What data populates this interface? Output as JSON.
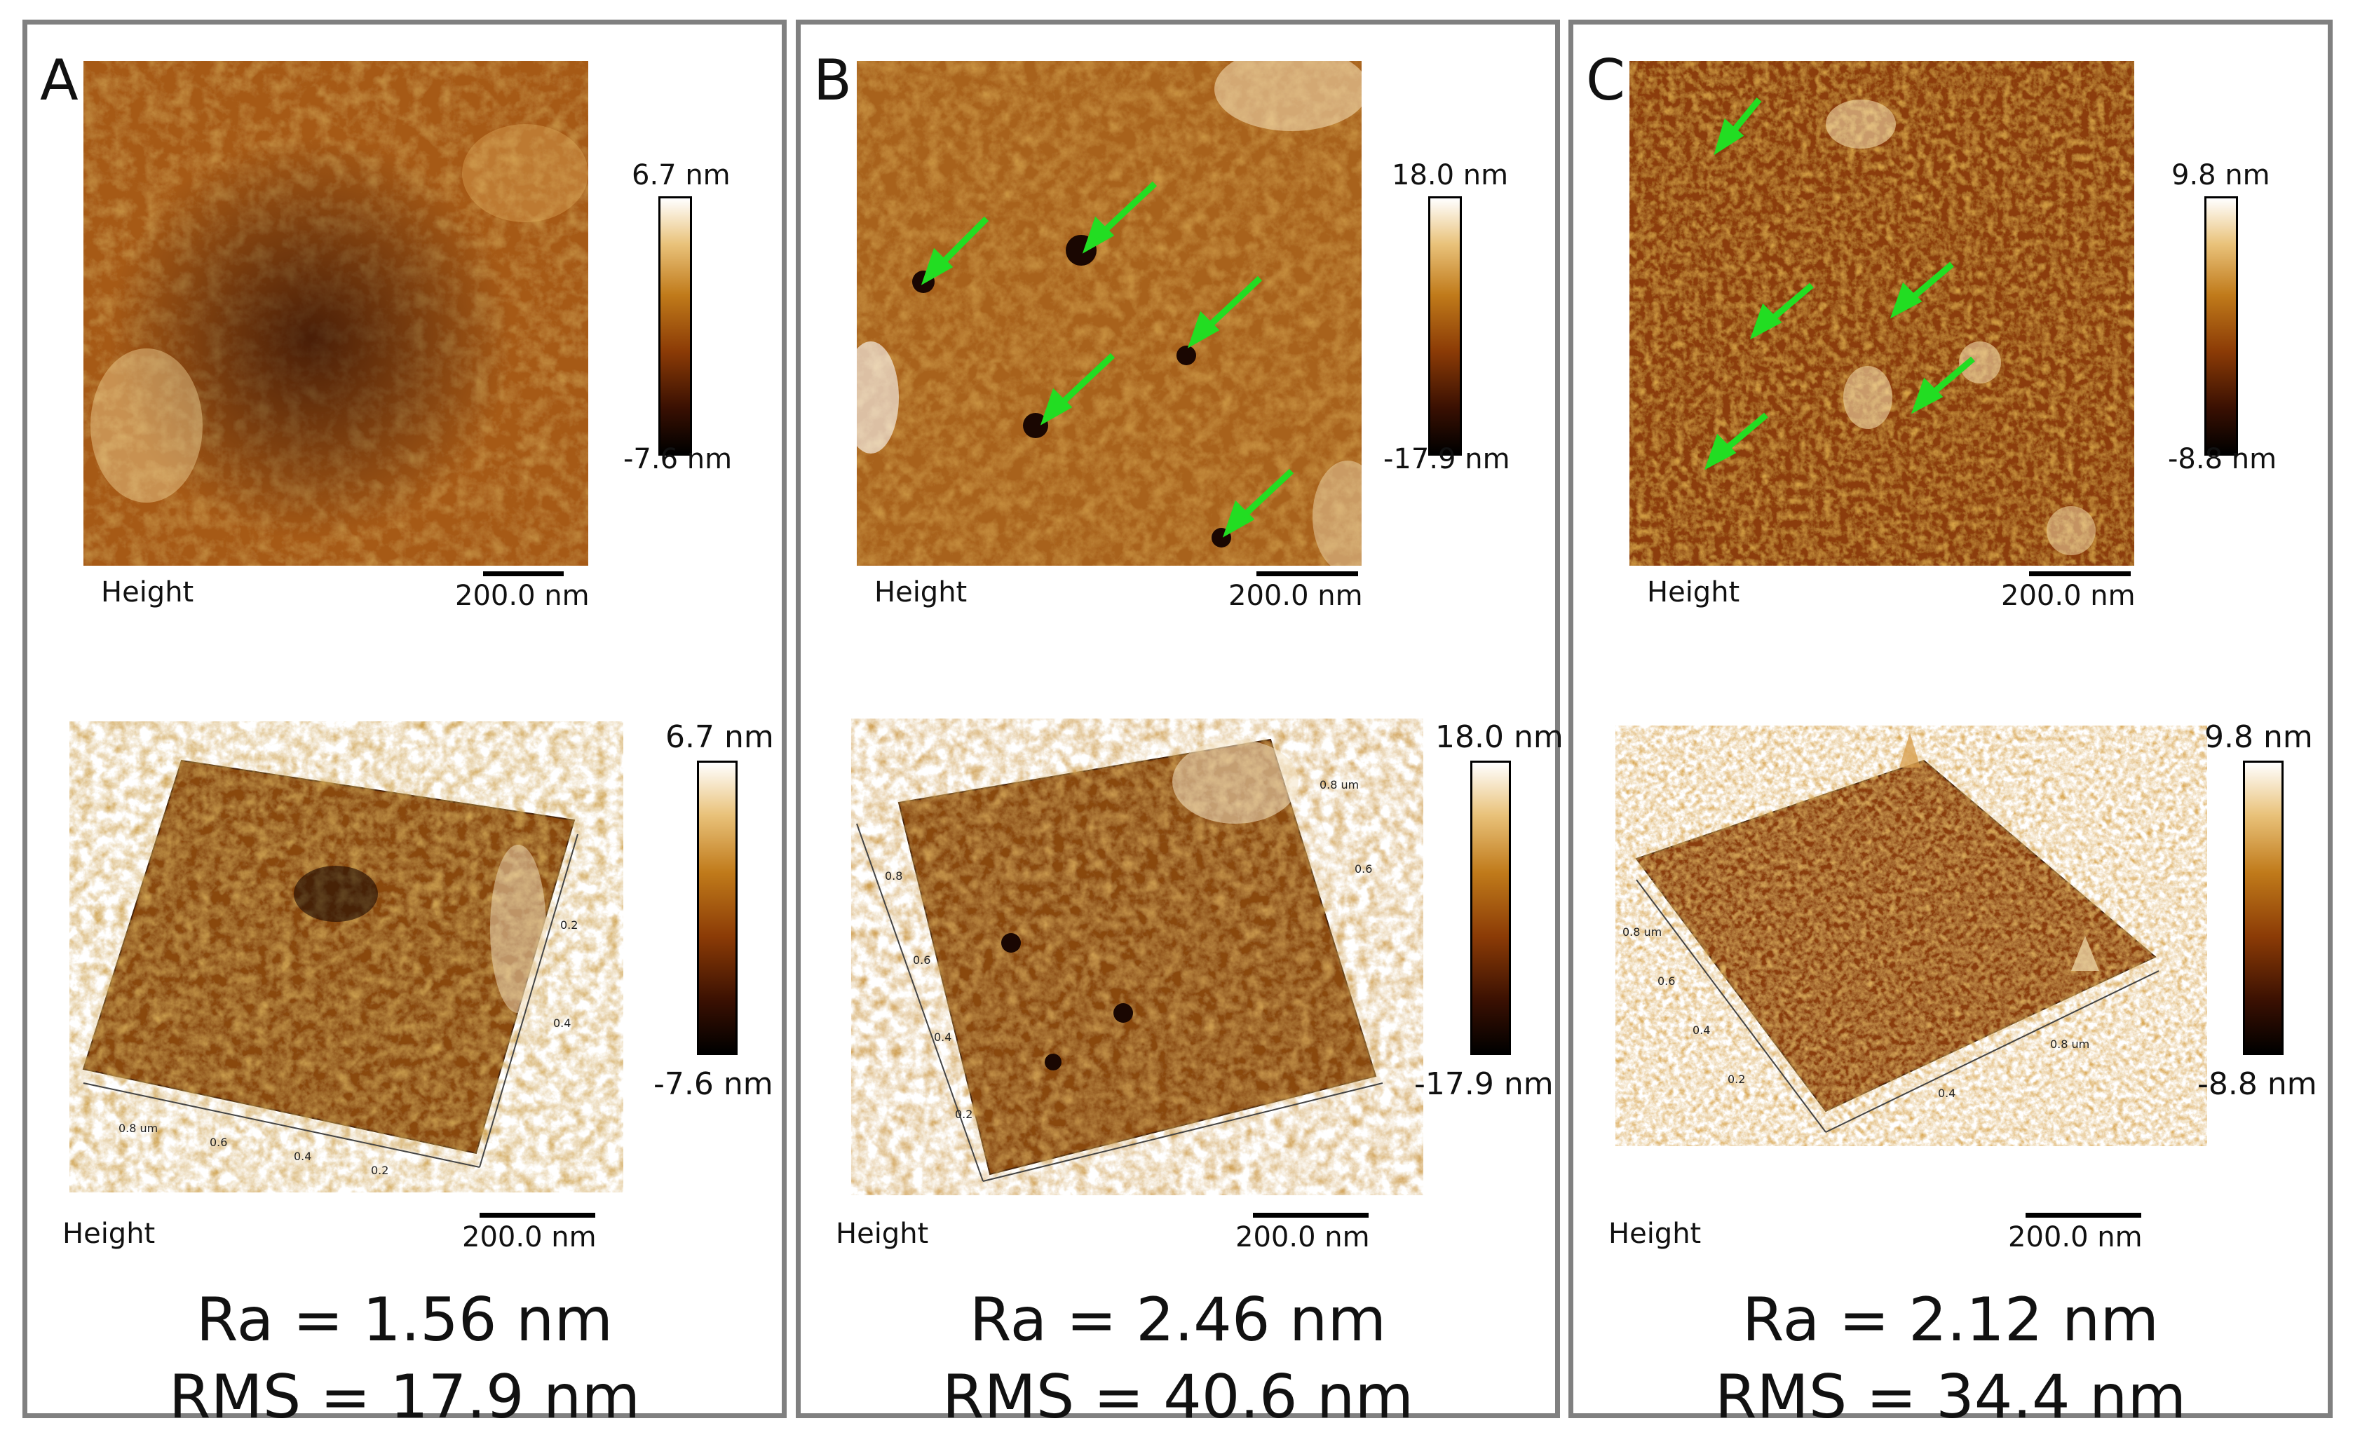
{
  "panels": [
    {
      "letter": "A",
      "height_caption": "Height",
      "scale_label": "200.0 nm",
      "colorbar_top_2d": "6.7 nm",
      "colorbar_bottom_2d": "-7.6 nm",
      "height_caption_3d": "Height",
      "scale_label_3d": "200.0 nm",
      "colorbar_top_3d": "6.7 nm",
      "colorbar_bottom_3d": "-7.6 nm",
      "ra": "Ra = 1.56 nm",
      "rms": "RMS = 17.9 nm"
    },
    {
      "letter": "B",
      "height_caption": "Height",
      "scale_label": "200.0 nm",
      "colorbar_top_2d": "18.0 nm",
      "colorbar_bottom_2d": "-17.9 nm",
      "height_caption_3d": "Height",
      "scale_label_3d": "200.0 nm",
      "colorbar_top_3d": "18.0 nm",
      "colorbar_bottom_3d": "-17.9 nm",
      "ra": "Ra = 2.46 nm",
      "rms": "RMS = 40.6 nm"
    },
    {
      "letter": "C",
      "height_caption": "Height",
      "scale_label": "200.0 nm",
      "colorbar_top_2d": "9.8 nm",
      "colorbar_bottom_2d": "-8.8 nm",
      "height_caption_3d": "Height",
      "scale_label_3d": "200.0 nm",
      "colorbar_top_3d": "9.8 nm",
      "colorbar_bottom_3d": "-8.8 nm",
      "ra": "Ra = 2.12 nm",
      "rms": "RMS = 34.4 nm"
    }
  ],
  "axis_ticks_3d": [
    "0.2",
    "0.4",
    "0.6",
    "0.8 um"
  ],
  "colors": {
    "arrow": "#22dd22",
    "panel_border": "#808080",
    "afm_mid": "#9a4a0c"
  }
}
